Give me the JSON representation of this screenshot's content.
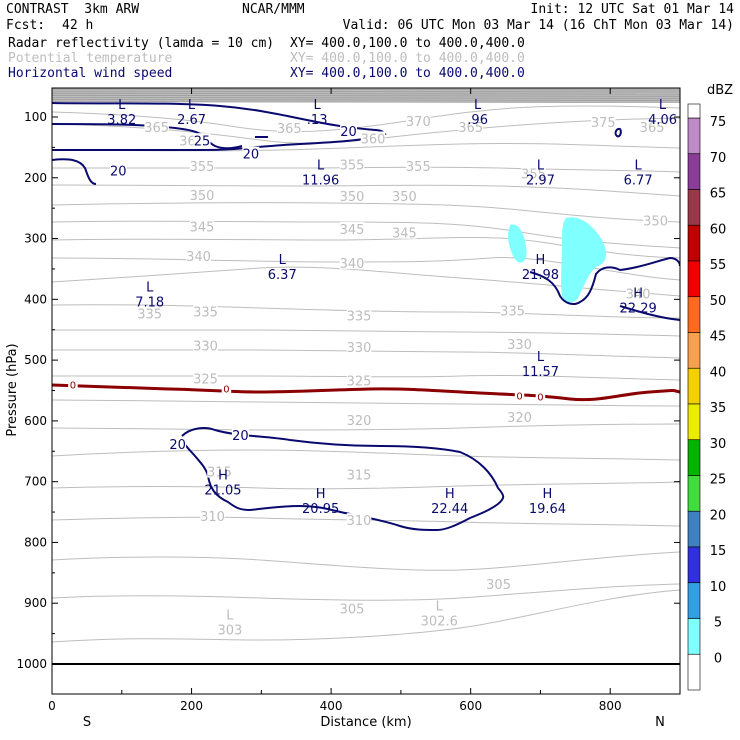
{
  "header": {
    "model": "CONTRAST  3km ARW",
    "center": "NCAR/MMM",
    "init": "Init: 12 UTC Sat 01 Mar 14",
    "fcst_label": "Fcst:",
    "fcst_value": "42 h",
    "valid": "Valid: 06 UTC Mon 03 Mar 14 (16 ChT Mon 03 Mar 14)",
    "fields": [
      {
        "name": "Radar reflectivity (lamda = 10 cm)",
        "xy": "XY= 400.0,100.0 to 400.0,400.0",
        "color": "#000000"
      },
      {
        "name": "Potential temperature",
        "xy": "XY= 400.0,100.0 to 400.0,400.0",
        "color": "#bdbdbd"
      },
      {
        "name": "Horizontal wind speed",
        "xy": "XY= 400.0,100.0 to 400.0,400.0",
        "color": "#0a0a6e"
      }
    ]
  },
  "chart_data": {
    "type": "cross-section contour",
    "xlabel": "Distance (km)",
    "ylabel": "Pressure (hPa)",
    "xlim": [
      0,
      900
    ],
    "ylim": [
      1050,
      55
    ],
    "xticks": [
      0,
      200,
      400,
      600,
      800
    ],
    "yticks": [
      100,
      200,
      300,
      400,
      500,
      600,
      700,
      800,
      900,
      1000
    ],
    "x_end_labels": {
      "left": "S",
      "right": "N"
    },
    "theta_labels": [
      {
        "v": "365",
        "x": 150,
        "p": 118
      },
      {
        "v": "365",
        "x": 340,
        "p": 120
      },
      {
        "v": "370",
        "x": 525,
        "p": 108
      },
      {
        "v": "365",
        "x": 600,
        "p": 118
      },
      {
        "v": "375",
        "x": 790,
        "p": 110
      },
      {
        "v": "365",
        "x": 860,
        "p": 118
      },
      {
        "v": "360",
        "x": 200,
        "p": 140
      },
      {
        "v": "360",
        "x": 460,
        "p": 137
      },
      {
        "v": "355",
        "x": 215,
        "p": 182
      },
      {
        "v": "355",
        "x": 430,
        "p": 180
      },
      {
        "v": "355",
        "x": 525,
        "p": 182
      },
      {
        "v": "355",
        "x": 690,
        "p": 195
      },
      {
        "v": "350",
        "x": 215,
        "p": 230
      },
      {
        "v": "350",
        "x": 430,
        "p": 232
      },
      {
        "v": "350",
        "x": 505,
        "p": 232
      },
      {
        "v": "350",
        "x": 865,
        "p": 272
      },
      {
        "v": "345",
        "x": 215,
        "p": 282
      },
      {
        "v": "345",
        "x": 430,
        "p": 286
      },
      {
        "v": "345",
        "x": 505,
        "p": 292
      },
      {
        "v": "340",
        "x": 210,
        "p": 330
      },
      {
        "v": "340",
        "x": 430,
        "p": 342
      },
      {
        "v": "340",
        "x": 840,
        "p": 392
      },
      {
        "v": "335",
        "x": 140,
        "p": 425
      },
      {
        "v": "335",
        "x": 220,
        "p": 422
      },
      {
        "v": "335",
        "x": 440,
        "p": 428
      },
      {
        "v": "335",
        "x": 660,
        "p": 420
      },
      {
        "v": "330",
        "x": 220,
        "p": 478
      },
      {
        "v": "330",
        "x": 440,
        "p": 480
      },
      {
        "v": "330",
        "x": 670,
        "p": 475
      },
      {
        "v": "325",
        "x": 220,
        "p": 532
      },
      {
        "v": "325",
        "x": 440,
        "p": 535
      },
      {
        "v": "320",
        "x": 440,
        "p": 600
      },
      {
        "v": "320",
        "x": 670,
        "p": 595
      },
      {
        "v": "315",
        "x": 240,
        "p": 685
      },
      {
        "v": "315",
        "x": 440,
        "p": 690
      },
      {
        "v": "310",
        "x": 230,
        "p": 758
      },
      {
        "v": "310",
        "x": 440,
        "p": 765
      },
      {
        "v": "305",
        "x": 640,
        "p": 870
      },
      {
        "v": "305",
        "x": 430,
        "p": 910
      }
    ],
    "extrema": [
      {
        "t": "L",
        "v": "3.82",
        "x": 100,
        "p": 95
      },
      {
        "t": "L",
        "v": "2.67",
        "x": 200,
        "p": 95
      },
      {
        "t": "L",
        "v": ".13",
        "x": 380,
        "p": 95
      },
      {
        "t": "L",
        "v": ".96",
        "x": 610,
        "p": 95
      },
      {
        "t": "L",
        "v": "4.06",
        "x": 875,
        "p": 95
      },
      {
        "t": "L",
        "v": "11.96",
        "x": 385,
        "p": 195
      },
      {
        "t": "L",
        "v": "2.97",
        "x": 700,
        "p": 195
      },
      {
        "t": "L",
        "v": "6.77",
        "x": 840,
        "p": 195
      },
      {
        "t": "L",
        "v": "6.37",
        "x": 330,
        "p": 350
      },
      {
        "t": "H",
        "v": "21.98",
        "x": 700,
        "p": 350
      },
      {
        "t": "H",
        "v": "22.29",
        "x": 840,
        "p": 405
      },
      {
        "t": "L",
        "v": "7.18",
        "x": 140,
        "p": 395
      },
      {
        "t": "L",
        "v": "11.57",
        "x": 700,
        "p": 510
      },
      {
        "t": "H",
        "v": "21.05",
        "x": 245,
        "p": 705
      },
      {
        "t": "H",
        "v": "20.95",
        "x": 385,
        "p": 735
      },
      {
        "t": "H",
        "v": "22.44",
        "x": 570,
        "p": 735
      },
      {
        "t": "H",
        "v": "19.64",
        "x": 710,
        "p": 735
      },
      {
        "t": "L",
        "v": "303",
        "x": 255,
        "p": 935
      },
      {
        "t": "L",
        "v": "302.6",
        "x": 555,
        "p": 920
      }
    ],
    "wind_labels": [
      {
        "v": "25",
        "x": 215,
        "p": 140
      },
      {
        "v": "20",
        "x": 425,
        "p": 125
      },
      {
        "v": "20",
        "x": 285,
        "p": 162
      },
      {
        "v": "20",
        "x": 95,
        "p": 190
      },
      {
        "v": "20",
        "x": 180,
        "p": 640
      },
      {
        "v": "20",
        "x": 270,
        "p": 625
      }
    ],
    "zero_labels": [
      {
        "v": "0",
        "x": 30,
        "p": 540
      },
      {
        "v": "0",
        "x": 250,
        "p": 547
      },
      {
        "v": "0",
        "x": 670,
        "p": 558
      },
      {
        "v": "0",
        "x": 700,
        "p": 560
      }
    ],
    "colorbar": {
      "unit": "dBZ",
      "labels": [
        "75",
        "70",
        "65",
        "60",
        "55",
        "50",
        "45",
        "40",
        "35",
        "30",
        "25",
        "20",
        "15",
        "10",
        "5",
        "0"
      ],
      "colors": [
        "#c08ac8",
        "#8a3c98",
        "#983848",
        "#c00000",
        "#f00000",
        "#ff6a20",
        "#f6a050",
        "#f4d000",
        "#ecec00",
        "#00b400",
        "#40dc40",
        "#4080c0",
        "#3030e0",
        "#30a0e0",
        "#80ffff",
        "#ffffff"
      ]
    },
    "colors": {
      "theta": "#bdbdbd",
      "wind": "#0a0a6e",
      "freezing": "#8b0000",
      "reflectivity": "#80ffff"
    }
  }
}
